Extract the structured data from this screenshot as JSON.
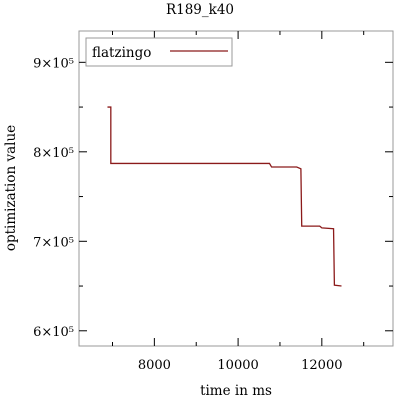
{
  "chart_data": {
    "type": "line",
    "title": "R189_k40",
    "xlabel": "time in ms",
    "ylabel": "optimization value",
    "xlim": [
      6200,
      13700
    ],
    "ylim": [
      583000,
      935000
    ],
    "x_ticks": [
      8000,
      10000,
      12000
    ],
    "x_tick_labels": [
      "8000",
      "10000",
      "12000"
    ],
    "y_ticks": [
      600000,
      700000,
      800000,
      900000
    ],
    "y_tick_labels": [
      "6×10⁵",
      "7×10⁵",
      "8×10⁵",
      "9×10⁵"
    ],
    "grid": false,
    "legend_position": "top-left",
    "series": [
      {
        "name": "flatzingo",
        "color": "#8b1a1a",
        "step": true,
        "points": [
          [
            6880,
            850000
          ],
          [
            6960,
            850000
          ],
          [
            6960,
            787000
          ],
          [
            10750,
            787000
          ],
          [
            10800,
            783000
          ],
          [
            11400,
            783000
          ],
          [
            11500,
            781000
          ],
          [
            11520,
            717000
          ],
          [
            11950,
            717000
          ],
          [
            12000,
            715000
          ],
          [
            12280,
            714000
          ],
          [
            12300,
            651000
          ],
          [
            12470,
            650000
          ]
        ]
      }
    ]
  }
}
